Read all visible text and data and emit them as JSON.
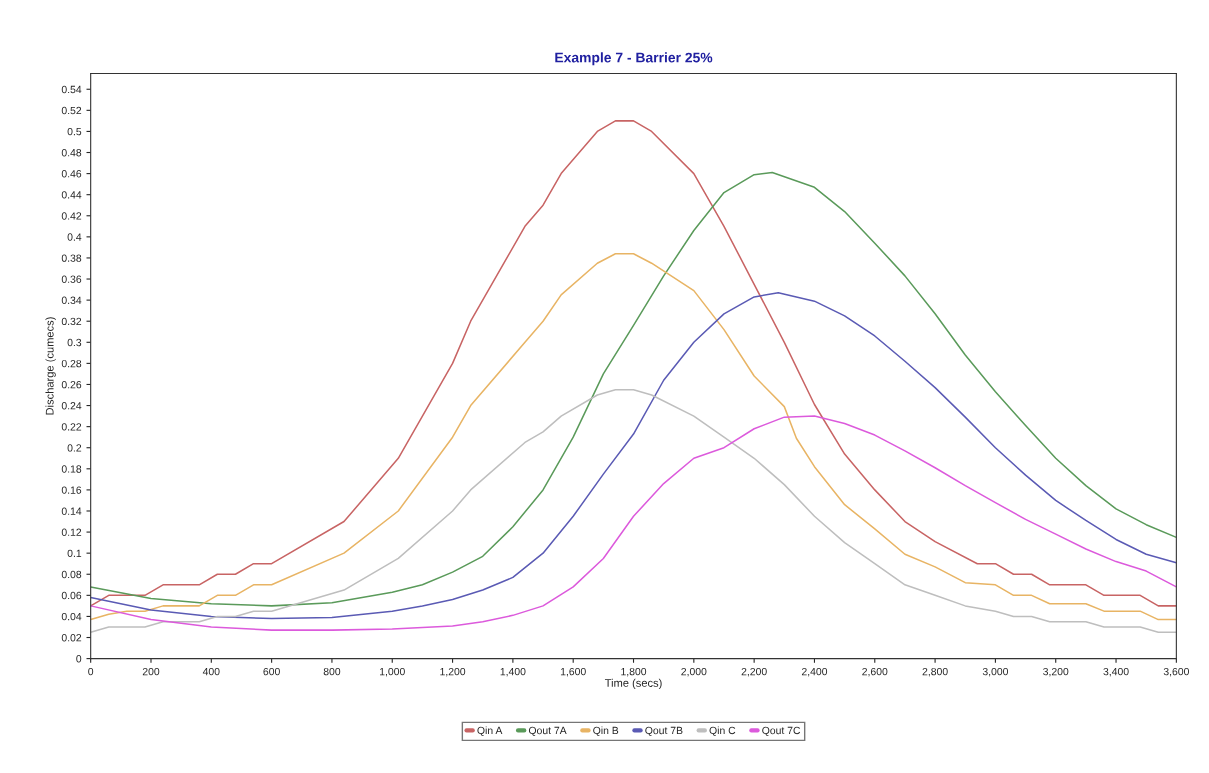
{
  "chart_data": {
    "type": "line",
    "title": "Example 7 - Barrier 25%",
    "xlabel": "Time (secs)",
    "ylabel": "Discharge (cumecs)",
    "xlim": [
      0,
      3600
    ],
    "ylim": [
      0,
      0.555
    ],
    "xticks": [
      0,
      200,
      400,
      600,
      800,
      {
        "value": 1000,
        "label": "1,000"
      },
      {
        "value": 1200,
        "label": "1,200"
      },
      {
        "value": 1400,
        "label": "1,400"
      },
      {
        "value": 1600,
        "label": "1,600"
      },
      {
        "value": 1800,
        "label": "1,800"
      },
      {
        "value": 2000,
        "label": "2,000"
      },
      {
        "value": 2200,
        "label": "2,200"
      },
      {
        "value": 2400,
        "label": "2,400"
      },
      {
        "value": 2600,
        "label": "2,600"
      },
      {
        "value": 2800,
        "label": "2,800"
      },
      {
        "value": 3000,
        "label": "3,000"
      },
      {
        "value": 3200,
        "label": "3,200"
      },
      {
        "value": 3400,
        "label": "3,400"
      },
      {
        "value": 3600,
        "label": "3,600"
      }
    ],
    "yticks": [
      0,
      0.02,
      0.04,
      0.06,
      0.08,
      0.1,
      0.12,
      0.14,
      0.16,
      0.18,
      0.2,
      0.22,
      0.24,
      0.26,
      0.28,
      0.3,
      0.32,
      0.34,
      0.36,
      0.38,
      0.4,
      0.42,
      0.44,
      0.46,
      0.48,
      0.5,
      0.52,
      0.54
    ],
    "grid": false,
    "legend": "bottom",
    "marker": "none",
    "line_style": "solid",
    "series": [
      {
        "name": "Qin A",
        "color": "#c86464",
        "x": [
          0,
          60,
          180,
          240,
          360,
          420,
          480,
          540,
          600,
          840,
          1020,
          1200,
          1260,
          1440,
          1500,
          1560,
          1680,
          1740,
          1800,
          1860,
          2000,
          2100,
          2200,
          2300,
          2400,
          2500,
          2600,
          2700,
          2800,
          2940,
          3000,
          3060,
          3120,
          3180,
          3300,
          3360,
          3480,
          3540,
          3600
        ],
        "values": [
          0.05,
          0.06,
          0.06,
          0.07,
          0.07,
          0.08,
          0.08,
          0.09,
          0.09,
          0.13,
          0.19,
          0.28,
          0.32,
          0.41,
          0.43,
          0.46,
          0.5,
          0.51,
          0.51,
          0.5,
          0.46,
          0.41,
          0.355,
          0.3,
          0.241,
          0.194,
          0.16,
          0.13,
          0.111,
          0.09,
          0.09,
          0.08,
          0.08,
          0.07,
          0.07,
          0.06,
          0.06,
          0.05,
          0.05
        ]
      },
      {
        "name": "Qout 7A",
        "color": "#5a9a5a",
        "x": [
          0,
          200,
          400,
          600,
          800,
          1000,
          1100,
          1200,
          1300,
          1400,
          1500,
          1600,
          1700,
          1800,
          1900,
          2000,
          2100,
          2200,
          2260,
          2400,
          2500,
          2600,
          2700,
          2800,
          2900,
          3000,
          3100,
          3200,
          3300,
          3400,
          3500,
          3600
        ],
        "values": [
          0.068,
          0.057,
          0.052,
          0.05,
          0.053,
          0.063,
          0.07,
          0.082,
          0.097,
          0.125,
          0.16,
          0.21,
          0.27,
          0.316,
          0.363,
          0.406,
          0.442,
          0.459,
          0.461,
          0.447,
          0.424,
          0.394,
          0.363,
          0.327,
          0.288,
          0.253,
          0.221,
          0.19,
          0.164,
          0.142,
          0.127,
          0.115
        ]
      },
      {
        "name": "Qin B",
        "color": "#e8b464",
        "x": [
          0,
          60,
          120,
          180,
          240,
          360,
          420,
          480,
          540,
          600,
          840,
          1020,
          1200,
          1260,
          1440,
          1500,
          1560,
          1680,
          1740,
          1800,
          1860,
          2000,
          2100,
          2200,
          2300,
          2340,
          2400,
          2500,
          2600,
          2700,
          2800,
          2900,
          3000,
          3060,
          3120,
          3180,
          3300,
          3360,
          3480,
          3540,
          3600
        ],
        "values": [
          0.037,
          0.042,
          0.045,
          0.045,
          0.05,
          0.05,
          0.06,
          0.06,
          0.07,
          0.07,
          0.1,
          0.14,
          0.21,
          0.24,
          0.3,
          0.32,
          0.345,
          0.375,
          0.384,
          0.384,
          0.375,
          0.349,
          0.312,
          0.268,
          0.239,
          0.209,
          0.182,
          0.146,
          0.123,
          0.099,
          0.087,
          0.072,
          0.07,
          0.06,
          0.06,
          0.052,
          0.052,
          0.045,
          0.045,
          0.037,
          0.037
        ]
      },
      {
        "name": "Qout 7B",
        "color": "#5a5ab4",
        "x": [
          0,
          200,
          400,
          600,
          800,
          1000,
          1100,
          1200,
          1300,
          1400,
          1500,
          1600,
          1700,
          1800,
          1900,
          2000,
          2100,
          2200,
          2280,
          2400,
          2500,
          2600,
          2700,
          2800,
          2900,
          3000,
          3100,
          3200,
          3300,
          3400,
          3500,
          3600
        ],
        "values": [
          0.058,
          0.046,
          0.04,
          0.038,
          0.039,
          0.045,
          0.05,
          0.056,
          0.065,
          0.077,
          0.1,
          0.135,
          0.175,
          0.213,
          0.264,
          0.3,
          0.327,
          0.343,
          0.347,
          0.339,
          0.325,
          0.306,
          0.282,
          0.257,
          0.229,
          0.2,
          0.174,
          0.15,
          0.131,
          0.113,
          0.099,
          0.091
        ]
      },
      {
        "name": "Qin C",
        "color": "#bebebe",
        "x": [
          0,
          60,
          180,
          240,
          360,
          420,
          480,
          540,
          600,
          840,
          1020,
          1200,
          1260,
          1440,
          1500,
          1560,
          1680,
          1740,
          1800,
          1860,
          2000,
          2100,
          2200,
          2300,
          2400,
          2500,
          2600,
          2700,
          2800,
          2900,
          3000,
          3060,
          3120,
          3180,
          3300,
          3360,
          3480,
          3540,
          3600
        ],
        "values": [
          0.025,
          0.03,
          0.03,
          0.035,
          0.035,
          0.04,
          0.04,
          0.045,
          0.045,
          0.065,
          0.095,
          0.14,
          0.16,
          0.205,
          0.215,
          0.23,
          0.25,
          0.255,
          0.255,
          0.25,
          0.23,
          0.21,
          0.19,
          0.165,
          0.135,
          0.11,
          0.09,
          0.07,
          0.06,
          0.05,
          0.045,
          0.04,
          0.04,
          0.035,
          0.035,
          0.03,
          0.03,
          0.025,
          0.025
        ]
      },
      {
        "name": "Qout 7C",
        "color": "#dc5adc",
        "x": [
          0,
          200,
          400,
          600,
          800,
          1000,
          1200,
          1300,
          1400,
          1500,
          1600,
          1700,
          1800,
          1900,
          2000,
          2100,
          2200,
          2300,
          2400,
          2500,
          2600,
          2700,
          2800,
          2900,
          3000,
          3100,
          3200,
          3300,
          3400,
          3500,
          3600
        ],
        "values": [
          0.05,
          0.037,
          0.03,
          0.027,
          0.027,
          0.028,
          0.031,
          0.035,
          0.041,
          0.05,
          0.068,
          0.095,
          0.135,
          0.166,
          0.19,
          0.2,
          0.218,
          0.229,
          0.23,
          0.223,
          0.212,
          0.197,
          0.181,
          0.164,
          0.148,
          0.132,
          0.118,
          0.104,
          0.092,
          0.083,
          0.068
        ]
      }
    ]
  }
}
